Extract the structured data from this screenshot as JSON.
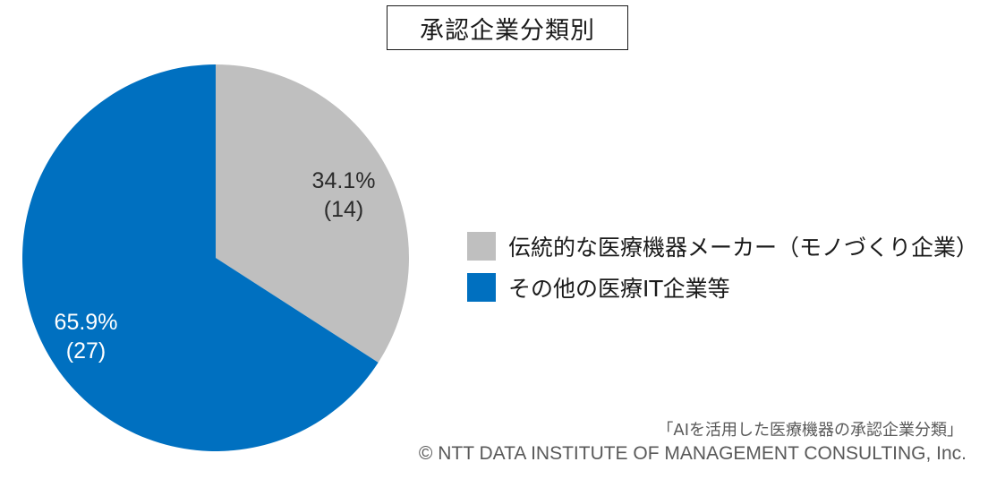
{
  "chart_data": {
    "type": "pie",
    "title": "承認企業分類別",
    "slices": [
      {
        "name": "伝統的な医療機器メーカー（モノづくり企業）",
        "percent": 34.1,
        "count": 14,
        "percent_label": "34.1%",
        "count_label": "(14)",
        "color": "#BFBFBF",
        "label_color": "#2b2b2b"
      },
      {
        "name": "その他の医療IT企業等",
        "percent": 65.9,
        "count": 27,
        "percent_label": "65.9%",
        "count_label": "(27)",
        "color": "#0070C0",
        "label_color": "#ffffff"
      }
    ],
    "legend_placement": "right"
  },
  "footer": {
    "source": "「AIを活用した医療機器の承認企業分類」",
    "copyright": "© NTT DATA INSTITUTE OF MANAGEMENT  CONSULTING, Inc."
  }
}
